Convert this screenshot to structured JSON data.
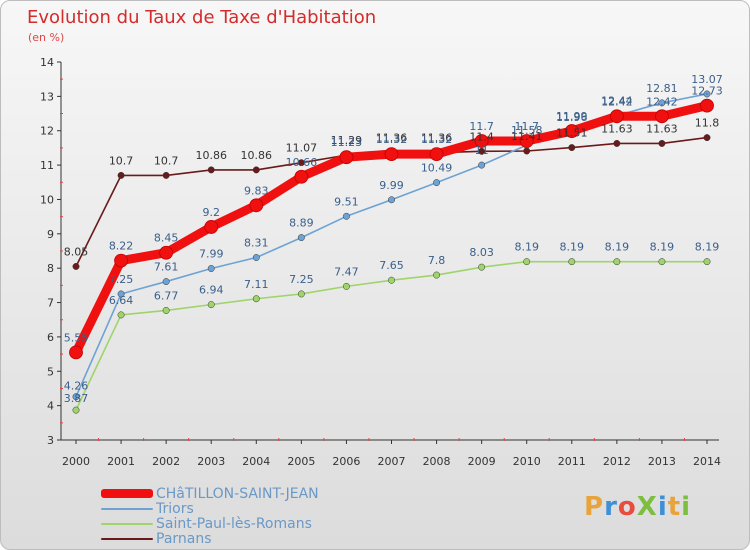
{
  "header": {
    "title": "Evolution du Taux de Taxe d'Habitation",
    "subtitle": "(en %)"
  },
  "logo": {
    "text": "ProXiti",
    "colors": [
      "#e8a33a",
      "#3d8fd6",
      "#e84c3d",
      "#7cbf3f",
      "#3d8fd6",
      "#e8a33a",
      "#7cbf3f"
    ]
  },
  "chart_data": {
    "type": "line",
    "title": "Evolution du Taux de Taxe d'Habitation",
    "subtitle": "(en %)",
    "xlabel": "",
    "ylabel": "",
    "ylim": [
      3,
      14
    ],
    "yticks": [
      "3",
      "4",
      "5",
      "6",
      "7",
      "8",
      "9",
      "10",
      "11",
      "12",
      "13",
      "14"
    ],
    "grid": false,
    "legend_position": "bottom",
    "x": [
      "2000",
      "2001",
      "2002",
      "2003",
      "2004",
      "2005",
      "2006",
      "2007",
      "2008",
      "2009",
      "2010",
      "2011",
      "2012",
      "2013",
      "2014"
    ],
    "series": [
      {
        "name": "Parnans",
        "color": "#6b1a1a",
        "values": [
          8.05,
          10.7,
          10.7,
          10.86,
          10.86,
          11.07,
          11.29,
          11.36,
          11.36,
          11.4,
          11.41,
          11.51,
          11.63,
          11.63,
          11.8
        ],
        "labels": [
          "8.05",
          "10.7",
          "10.7",
          "10.86",
          "10.86",
          "11.07",
          "11.29",
          "11.36",
          "11.36",
          "11.4",
          "11.41",
          "11.51",
          "11.63",
          "11.63",
          "11.8"
        ]
      },
      {
        "name": "Saint-Paul-lès-Romans",
        "color": "#9fd46a",
        "values": [
          3.87,
          6.64,
          6.77,
          6.94,
          7.11,
          7.25,
          7.47,
          7.65,
          7.8,
          8.03,
          8.19,
          8.19,
          8.19,
          8.19,
          8.19
        ],
        "labels": [
          "3.87",
          "6.64",
          "6.77",
          "6.94",
          "7.11",
          "7.25",
          "7.47",
          "7.65",
          "7.8",
          "8.03",
          "8.19",
          "8.19",
          "8.19",
          "8.19",
          "8.19"
        ]
      },
      {
        "name": "Triors",
        "color": "#6da3d4",
        "values": [
          4.26,
          7.25,
          7.61,
          7.99,
          8.31,
          8.89,
          9.51,
          9.99,
          10.49,
          11.0,
          11.58,
          11.96,
          12.44,
          12.81,
          13.07
        ],
        "labels": [
          "4.26",
          "7.25",
          "7.61",
          "7.99",
          "8.31",
          "8.89",
          "9.51",
          "9.99",
          "10.49",
          "11",
          "11.58",
          "11.96",
          "12.44",
          "12.81",
          "13.07"
        ]
      },
      {
        "name": "CHâTILLON-SAINT-JEAN",
        "color": "#f01010",
        "values": [
          5.55,
          8.22,
          8.45,
          9.2,
          9.83,
          10.66,
          11.23,
          11.32,
          11.32,
          11.7,
          11.7,
          11.99,
          12.42,
          12.42,
          12.73
        ],
        "labels": [
          "5.55",
          "8.22",
          "8.45",
          "9.2",
          "9.83",
          "10.66",
          "11.23",
          "11.32",
          "11.32",
          "11.7",
          "11.7",
          "11.99",
          "12.42",
          "12.42",
          "12.73"
        ]
      }
    ],
    "legend": [
      "CHâTILLON-SAINT-JEAN",
      "Triors",
      "Saint-Paul-lès-Romans",
      "Parnans"
    ]
  }
}
